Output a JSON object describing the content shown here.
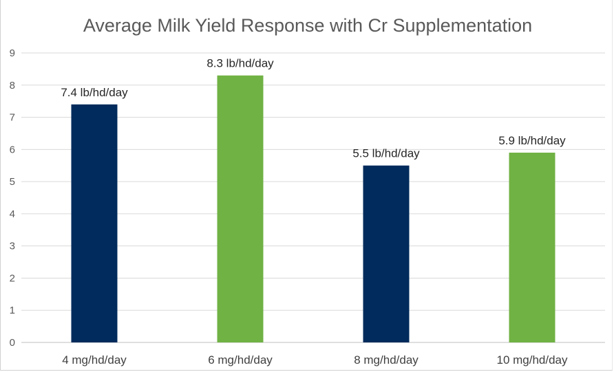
{
  "chart_data": {
    "type": "bar",
    "title": "Average Milk Yield Response with Cr Supplementation",
    "xlabel": "",
    "ylabel": "",
    "categories": [
      "4 mg/hd/day",
      "6 mg/hd/day",
      "8 mg/hd/day",
      "10 mg/hd/day"
    ],
    "values": [
      7.4,
      8.3,
      5.5,
      5.9
    ],
    "data_labels": [
      "7.4 lb/hd/day",
      "8.3 lb/hd/day",
      "5.5 lb/hd/day",
      "5.9 lb/hd/day"
    ],
    "bar_colors": [
      "#002b5c",
      "#70b244",
      "#002b5c",
      "#70b244"
    ],
    "ylim": [
      0,
      9
    ],
    "yticks": [
      0,
      1,
      2,
      3,
      4,
      5,
      6,
      7,
      8,
      9
    ],
    "grid": true,
    "legend": "none"
  }
}
